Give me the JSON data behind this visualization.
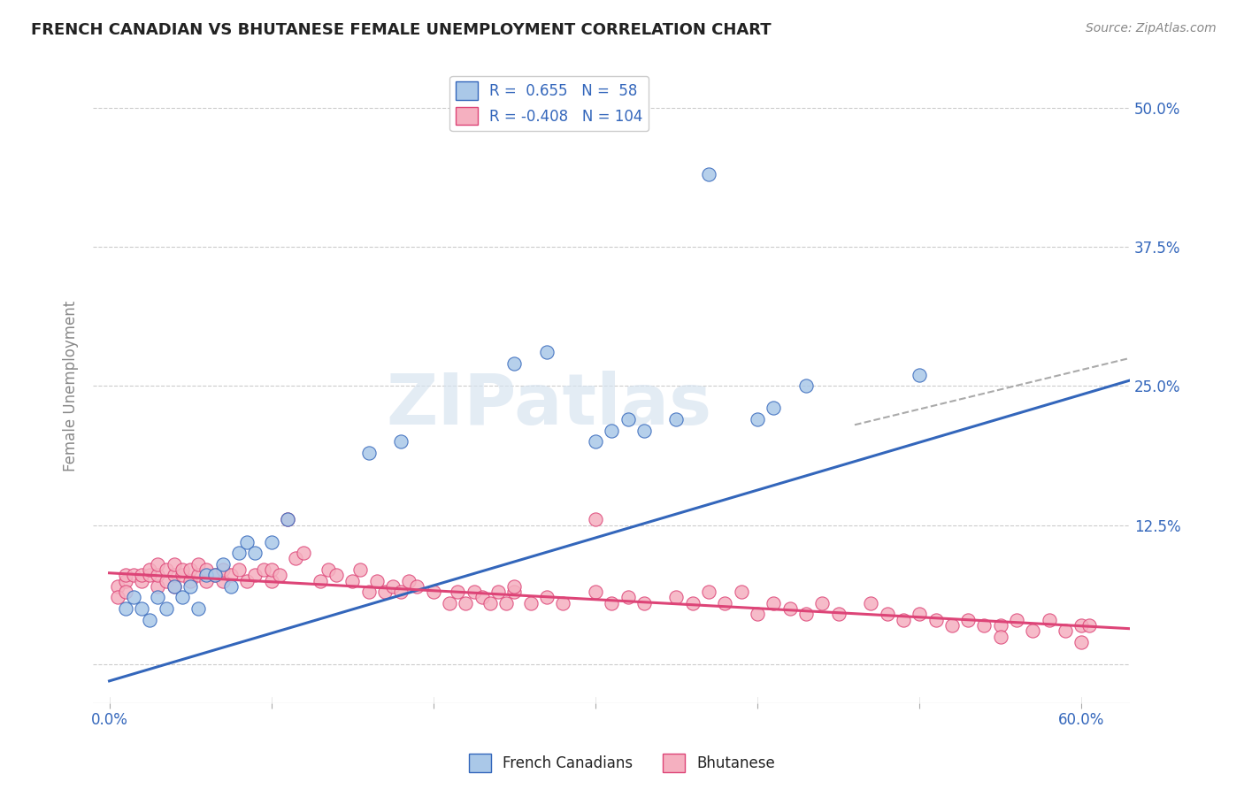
{
  "title": "FRENCH CANADIAN VS BHUTANESE FEMALE UNEMPLOYMENT CORRELATION CHART",
  "source": "Source: ZipAtlas.com",
  "ylabel": "Female Unemployment",
  "x_tick_labels_visible": [
    "0.0%",
    "60.0%"
  ],
  "y_ticks": [
    0.0,
    0.125,
    0.25,
    0.375,
    0.5
  ],
  "y_tick_labels": [
    "",
    "12.5%",
    "25.0%",
    "37.5%",
    "50.0%"
  ],
  "xlim": [
    -0.01,
    0.63
  ],
  "ylim": [
    -0.035,
    0.535
  ],
  "french_R": 0.655,
  "french_N": 58,
  "bhutanese_R": -0.408,
  "bhutanese_N": 104,
  "french_color": "#aac8e8",
  "bhutanese_color": "#f5b0c0",
  "french_line_color": "#3366bb",
  "bhutanese_line_color": "#dd4477",
  "background_color": "#ffffff",
  "title_color": "#222222",
  "axis_label_color": "#3366bb",
  "watermark": "ZIPatlas",
  "french_line_x0": 0.0,
  "french_line_y0": -0.015,
  "french_line_x1": 0.63,
  "french_line_y1": 0.255,
  "bhutanese_line_x0": 0.0,
  "bhutanese_line_y0": 0.082,
  "bhutanese_line_x1": 0.63,
  "bhutanese_line_y1": 0.032,
  "dashed_line_x0": 0.46,
  "dashed_line_y0": 0.215,
  "dashed_line_x1": 0.63,
  "dashed_line_y1": 0.275,
  "french_pts": [
    [
      0.01,
      0.05
    ],
    [
      0.015,
      0.06
    ],
    [
      0.02,
      0.05
    ],
    [
      0.025,
      0.04
    ],
    [
      0.03,
      0.06
    ],
    [
      0.035,
      0.05
    ],
    [
      0.04,
      0.07
    ],
    [
      0.045,
      0.06
    ],
    [
      0.05,
      0.07
    ],
    [
      0.055,
      0.05
    ],
    [
      0.06,
      0.08
    ],
    [
      0.065,
      0.08
    ],
    [
      0.07,
      0.09
    ],
    [
      0.075,
      0.07
    ],
    [
      0.08,
      0.1
    ],
    [
      0.085,
      0.11
    ],
    [
      0.09,
      0.1
    ],
    [
      0.1,
      0.11
    ],
    [
      0.11,
      0.13
    ],
    [
      0.16,
      0.19
    ],
    [
      0.18,
      0.2
    ],
    [
      0.25,
      0.27
    ],
    [
      0.27,
      0.28
    ],
    [
      0.3,
      0.2
    ],
    [
      0.31,
      0.21
    ],
    [
      0.32,
      0.22
    ],
    [
      0.33,
      0.21
    ],
    [
      0.35,
      0.22
    ],
    [
      0.37,
      0.44
    ],
    [
      0.4,
      0.22
    ],
    [
      0.41,
      0.23
    ],
    [
      0.43,
      0.25
    ],
    [
      0.5,
      0.26
    ]
  ],
  "bhutanese_pts": [
    [
      0.005,
      0.07
    ],
    [
      0.01,
      0.075
    ],
    [
      0.01,
      0.08
    ],
    [
      0.015,
      0.08
    ],
    [
      0.02,
      0.075
    ],
    [
      0.02,
      0.08
    ],
    [
      0.025,
      0.08
    ],
    [
      0.025,
      0.085
    ],
    [
      0.03,
      0.07
    ],
    [
      0.03,
      0.08
    ],
    [
      0.03,
      0.09
    ],
    [
      0.035,
      0.075
    ],
    [
      0.035,
      0.085
    ],
    [
      0.04,
      0.07
    ],
    [
      0.04,
      0.08
    ],
    [
      0.04,
      0.09
    ],
    [
      0.045,
      0.08
    ],
    [
      0.045,
      0.085
    ],
    [
      0.05,
      0.075
    ],
    [
      0.05,
      0.085
    ],
    [
      0.055,
      0.08
    ],
    [
      0.055,
      0.09
    ],
    [
      0.06,
      0.075
    ],
    [
      0.06,
      0.085
    ],
    [
      0.065,
      0.08
    ],
    [
      0.07,
      0.075
    ],
    [
      0.07,
      0.085
    ],
    [
      0.075,
      0.08
    ],
    [
      0.08,
      0.085
    ],
    [
      0.085,
      0.075
    ],
    [
      0.09,
      0.08
    ],
    [
      0.095,
      0.085
    ],
    [
      0.1,
      0.075
    ],
    [
      0.1,
      0.085
    ],
    [
      0.105,
      0.08
    ],
    [
      0.11,
      0.13
    ],
    [
      0.115,
      0.095
    ],
    [
      0.12,
      0.1
    ],
    [
      0.13,
      0.075
    ],
    [
      0.135,
      0.085
    ],
    [
      0.14,
      0.08
    ],
    [
      0.15,
      0.075
    ],
    [
      0.155,
      0.085
    ],
    [
      0.16,
      0.065
    ],
    [
      0.165,
      0.075
    ],
    [
      0.17,
      0.065
    ],
    [
      0.175,
      0.07
    ],
    [
      0.18,
      0.065
    ],
    [
      0.185,
      0.075
    ],
    [
      0.19,
      0.07
    ],
    [
      0.2,
      0.065
    ],
    [
      0.21,
      0.055
    ],
    [
      0.215,
      0.065
    ],
    [
      0.22,
      0.055
    ],
    [
      0.225,
      0.065
    ],
    [
      0.23,
      0.06
    ],
    [
      0.235,
      0.055
    ],
    [
      0.24,
      0.065
    ],
    [
      0.245,
      0.055
    ],
    [
      0.25,
      0.065
    ],
    [
      0.26,
      0.055
    ],
    [
      0.27,
      0.06
    ],
    [
      0.28,
      0.055
    ],
    [
      0.3,
      0.13
    ],
    [
      0.31,
      0.055
    ],
    [
      0.32,
      0.06
    ],
    [
      0.33,
      0.055
    ],
    [
      0.35,
      0.06
    ],
    [
      0.36,
      0.055
    ],
    [
      0.37,
      0.065
    ],
    [
      0.38,
      0.055
    ],
    [
      0.39,
      0.065
    ],
    [
      0.4,
      0.045
    ],
    [
      0.41,
      0.055
    ],
    [
      0.42,
      0.05
    ],
    [
      0.43,
      0.045
    ],
    [
      0.44,
      0.055
    ],
    [
      0.45,
      0.045
    ],
    [
      0.47,
      0.055
    ],
    [
      0.48,
      0.045
    ],
    [
      0.49,
      0.04
    ],
    [
      0.5,
      0.045
    ],
    [
      0.51,
      0.04
    ],
    [
      0.52,
      0.035
    ],
    [
      0.53,
      0.04
    ],
    [
      0.54,
      0.035
    ],
    [
      0.55,
      0.035
    ],
    [
      0.56,
      0.04
    ],
    [
      0.57,
      0.03
    ],
    [
      0.58,
      0.04
    ],
    [
      0.59,
      0.03
    ],
    [
      0.6,
      0.035
    ],
    [
      0.605,
      0.035
    ],
    [
      0.005,
      0.06
    ],
    [
      0.01,
      0.065
    ],
    [
      0.25,
      0.07
    ],
    [
      0.3,
      0.065
    ],
    [
      0.55,
      0.025
    ],
    [
      0.6,
      0.02
    ]
  ]
}
